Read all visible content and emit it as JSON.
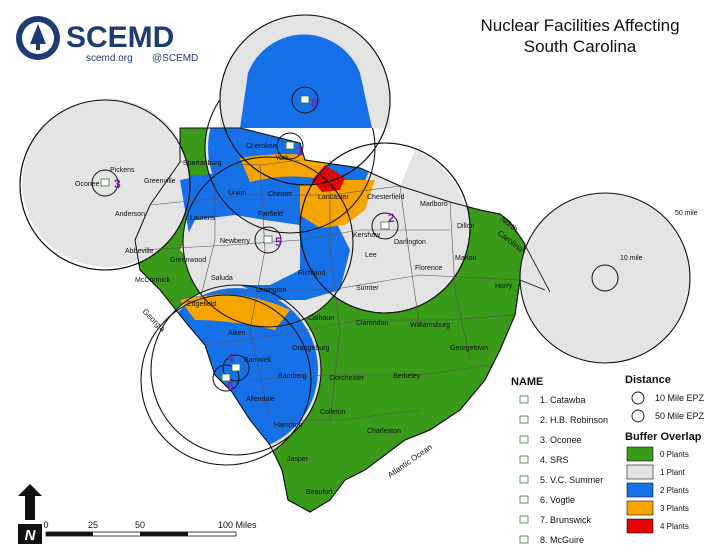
{
  "logo": {
    "name": "SCEMD",
    "website": "scemd.org",
    "handle": "@SCEMD"
  },
  "title": {
    "line1": "Nuclear Facilities Affecting",
    "line2": "South Carolina"
  },
  "counties": [
    "Cherokee",
    "York",
    "Spartanburg",
    "Pickens",
    "Greenville",
    "Oconee",
    "Anderson",
    "Union",
    "Chester",
    "Lancaster",
    "Chesterfield",
    "Marlboro",
    "Laurens",
    "Fairfield",
    "Kershaw",
    "Darlington",
    "Dillon",
    "Abbeville",
    "Greenwood",
    "Newberry",
    "Lee",
    "Florence",
    "Marion",
    "Horry",
    "McCormick",
    "Saluda",
    "Richland",
    "Sumter",
    "Lexington",
    "Edgefield",
    "Calhoun",
    "Clarendon",
    "Williamsburg",
    "Aiken",
    "Orangeburg",
    "Georgetown",
    "Barnwell",
    "Bamberg",
    "Dorchester",
    "Berkeley",
    "Allendale",
    "Colleton",
    "Charleston",
    "Hampton",
    "Jasper",
    "Beaufort"
  ],
  "region_labels": {
    "georgia": "Georgia",
    "north_carolina_1": "North",
    "north_carolina_2": "Carolina",
    "ocean": "Atlantic Ocean"
  },
  "plants": [
    {
      "num": "1",
      "name": "1. Catawba"
    },
    {
      "num": "2",
      "name": "2. H.B. Robinson"
    },
    {
      "num": "3",
      "name": "3. Oconee"
    },
    {
      "num": "4",
      "name": "4. SRS"
    },
    {
      "num": "5",
      "name": "5. V.C. Summer"
    },
    {
      "num": "6",
      "name": "6. Vogtle"
    },
    {
      "num": "7",
      "name": "7. Brunswick"
    },
    {
      "num": "8",
      "name": "8. McGuire"
    }
  ],
  "inset_labels": {
    "far": "50 mile",
    "near": "10 mile"
  },
  "legend": {
    "name_title": "NAME",
    "distance_title": "Distance",
    "distance_items": [
      "10 Mile EPZ",
      "50 Mile EPZ"
    ],
    "overlap_title": "Buffer Overlap",
    "overlap_items": [
      {
        "label": "0 Plants",
        "color": "#3a9a1a"
      },
      {
        "label": "1 Plant",
        "color": "#e4e4e4"
      },
      {
        "label": "2 Plants",
        "color": "#1670e8"
      },
      {
        "label": "3 Plants",
        "color": "#f5a400"
      },
      {
        "label": "4 Plants",
        "color": "#e60000"
      }
    ]
  },
  "scale_bar": {
    "ticks": [
      "0",
      "25",
      "50",
      "100 Miles"
    ]
  },
  "north_arrow": {
    "letter": "N"
  },
  "colors": {
    "zero": "#3a9a1a",
    "one": "#e4e4e4",
    "two": "#1670e8",
    "three": "#f5a400",
    "four": "#e60000",
    "logo": "#1f3b73",
    "plant_number": "#7a1fa2"
  }
}
